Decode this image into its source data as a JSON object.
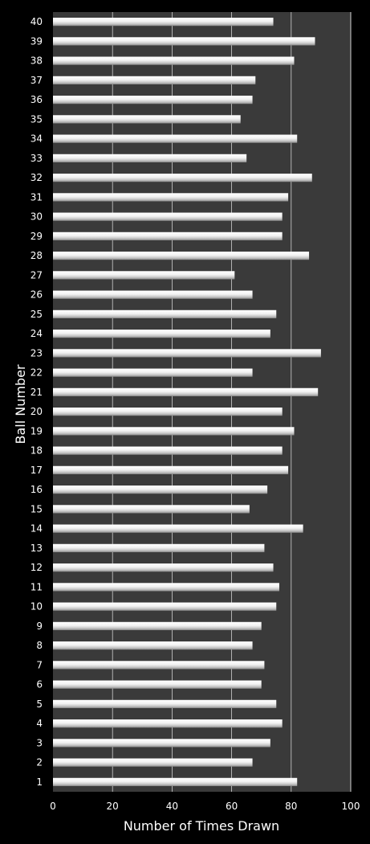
{
  "chart_data": {
    "type": "bar",
    "orientation": "horizontal",
    "xlabel": "Number of Times Drawn",
    "ylabel": "Ball Number",
    "xlim": [
      0,
      100
    ],
    "xticks": [
      "0",
      "20",
      "40",
      "60",
      "80",
      "100"
    ],
    "grid": "vertical",
    "categories": [
      "1",
      "2",
      "3",
      "4",
      "5",
      "6",
      "7",
      "8",
      "9",
      "10",
      "11",
      "12",
      "13",
      "14",
      "15",
      "16",
      "17",
      "18",
      "19",
      "20",
      "21",
      "22",
      "23",
      "24",
      "25",
      "26",
      "27",
      "28",
      "29",
      "30",
      "31",
      "32",
      "33",
      "34",
      "35",
      "36",
      "37",
      "38",
      "39",
      "40"
    ],
    "values": [
      82,
      67,
      73,
      77,
      75,
      70,
      71,
      67,
      70,
      75,
      76,
      74,
      71,
      84,
      66,
      72,
      79,
      77,
      81,
      77,
      89,
      67,
      90,
      73,
      75,
      67,
      61,
      86,
      77,
      77,
      79,
      87,
      65,
      82,
      63,
      67,
      68,
      81,
      88,
      74
    ],
    "colors": {
      "background": "#000000",
      "plot_area": "#3a3a3a",
      "gridline": "#d0d0d0",
      "bar_light": "#ffffff",
      "bar_mid": "#d6d6d6",
      "bar_dark": "#8c8c8c",
      "text": "#ffffff"
    }
  }
}
